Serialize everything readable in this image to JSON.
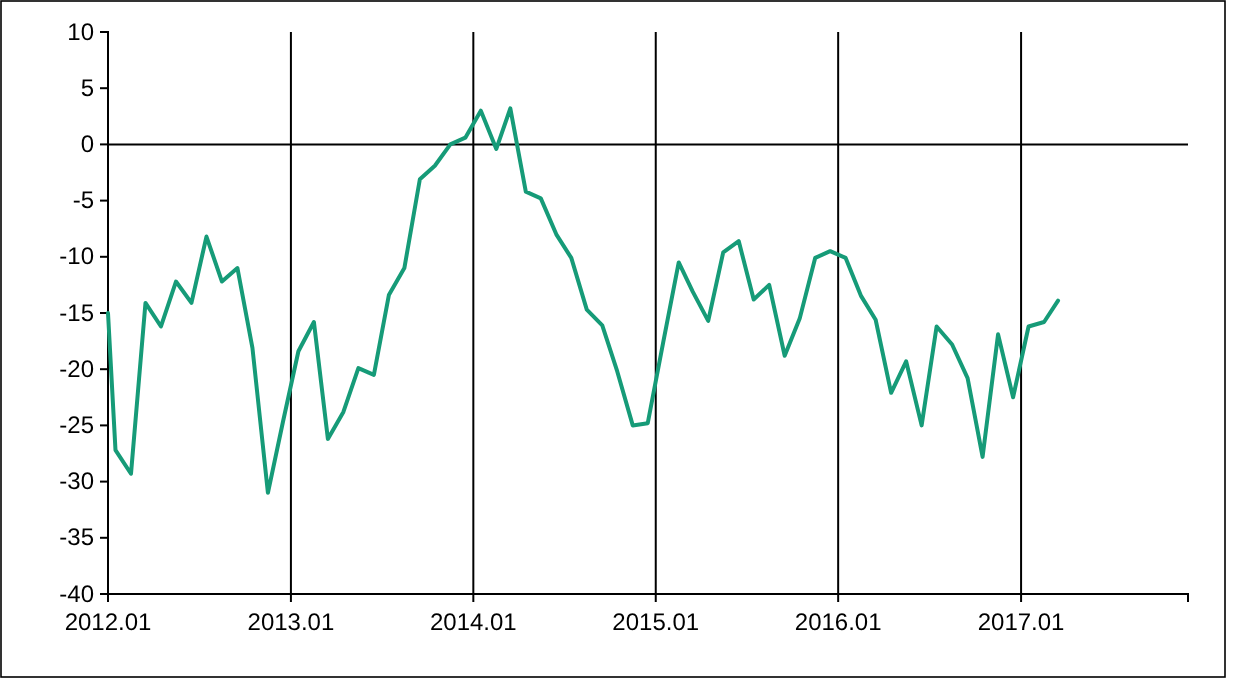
{
  "chart_data": {
    "type": "line",
    "x": [
      "2012-01-01",
      "2012-01-16",
      "2012-02-16",
      "2012-03-16",
      "2012-04-16",
      "2012-05-16",
      "2012-06-16",
      "2012-07-16",
      "2012-08-16",
      "2012-09-16",
      "2012-10-16",
      "2012-11-16",
      "2012-12-16",
      "2013-01-16",
      "2013-02-16",
      "2013-03-16",
      "2013-04-16",
      "2013-05-16",
      "2013-06-16",
      "2013-07-16",
      "2013-08-16",
      "2013-09-16",
      "2013-10-16",
      "2013-11-16",
      "2013-12-16",
      "2014-01-16",
      "2014-02-16",
      "2014-03-16",
      "2014-04-16",
      "2014-05-16",
      "2014-06-16",
      "2014-07-16",
      "2014-08-16",
      "2014-09-16",
      "2014-10-16",
      "2014-11-16",
      "2014-12-16",
      "2015-01-16",
      "2015-02-16",
      "2015-03-16",
      "2015-04-16",
      "2015-05-16",
      "2015-06-16",
      "2015-07-16",
      "2015-08-16",
      "2015-09-16",
      "2015-10-16",
      "2015-11-16",
      "2015-12-16",
      "2016-01-16",
      "2016-02-16",
      "2016-03-16",
      "2016-04-16",
      "2016-05-16",
      "2016-06-16",
      "2016-07-16",
      "2016-08-16",
      "2016-09-16",
      "2016-10-16",
      "2016-11-16",
      "2016-12-16",
      "2017-01-16",
      "2017-02-16",
      "2017-03-16"
    ],
    "series": [
      {
        "color": "#169b78",
        "values": [
          -15,
          -27.2,
          -29.3,
          -14.1,
          -16.2,
          -12.2,
          -14.1,
          -8.2,
          -12.2,
          -11,
          -18.1,
          -31,
          -24.7,
          -18.4,
          -15.8,
          -26.2,
          -23.8,
          -19.9,
          -20.5,
          -13.4,
          -11,
          -3.1,
          -1.9,
          0,
          0.6,
          3,
          -0.4,
          3.2,
          -4.2,
          -4.8,
          -8,
          -10.1,
          -14.7,
          -16.1,
          -20.2,
          -25,
          -24.8,
          -17.6,
          -10.5,
          -13.1,
          -15.7,
          -9.6,
          -8.6,
          -13.8,
          -12.5,
          -18.8,
          -15.5,
          -10.1,
          -9.5,
          -10.1,
          -13.5,
          -15.6,
          -22.1,
          -19.3,
          -25,
          -16.2,
          -17.8,
          -20.8,
          -27.8,
          -16.9,
          -22.5,
          -16.2,
          -15.8,
          -13.9
        ]
      }
    ],
    "xlim": [
      "2012-01-01",
      "2017-12-01"
    ],
    "xticks": [
      {
        "value": "2012-01-01",
        "label": "2012.01"
      },
      {
        "value": "2013-01-01",
        "label": "2013.01"
      },
      {
        "value": "2014-01-01",
        "label": "2014.01"
      },
      {
        "value": "2015-01-01",
        "label": "2015.01"
      },
      {
        "value": "2016-01-01",
        "label": "2016.01"
      },
      {
        "value": "2017-01-01",
        "label": "2017.01"
      }
    ],
    "ylim": [
      -40,
      10
    ],
    "yticks": [
      -40,
      -35,
      -30,
      -25,
      -20,
      -15,
      -10,
      -5,
      0,
      5,
      10
    ],
    "grid": "x",
    "ref_lines": [
      {
        "axis": "y",
        "value": 0,
        "color": "#000000"
      }
    ],
    "marker": "none",
    "line_style": "solid"
  }
}
